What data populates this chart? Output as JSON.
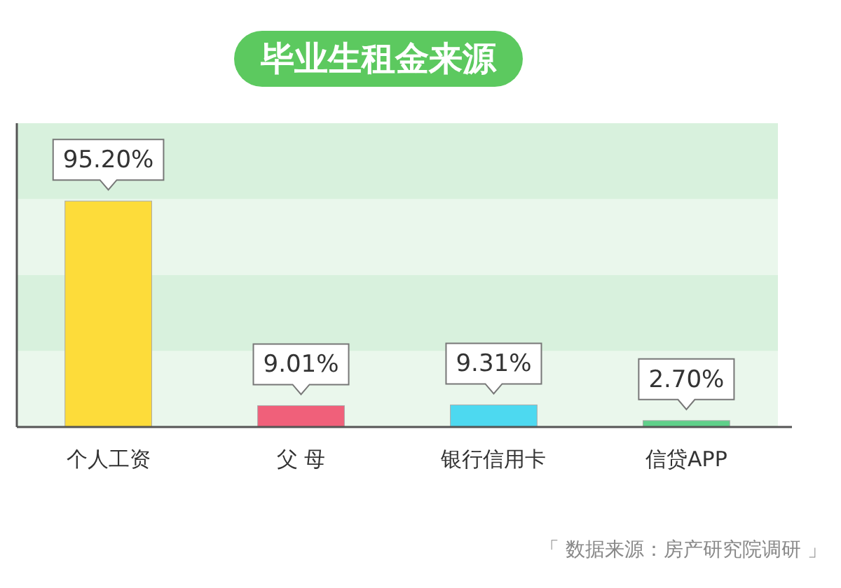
{
  "chart_data": {
    "type": "bar",
    "title": "毕业生租金来源",
    "categories": [
      "个人工资",
      "父 母",
      "银行信用卡",
      "信贷APP"
    ],
    "values": [
      95.2,
      9.01,
      9.31,
      2.7
    ],
    "value_labels": [
      "95.20%",
      "9.01%",
      "9.31%",
      "2.70%"
    ],
    "colors": [
      "#fddc3a",
      "#f0607a",
      "#4dd9f0",
      "#5fd08a"
    ],
    "ylim": [
      0,
      128
    ],
    "bands": [
      {
        "axis": "y",
        "from": 0,
        "to": 32,
        "color": "#eaf7ec"
      },
      {
        "axis": "y",
        "from": 32,
        "to": 64,
        "color": "#d8f1dd"
      },
      {
        "axis": "y",
        "from": 64,
        "to": 96,
        "color": "#eaf7ec"
      },
      {
        "axis": "y",
        "from": 96,
        "to": 128,
        "color": "#d8f1dd"
      }
    ],
    "annotations": [
      "「 数据来源：房产研究院调研 」"
    ]
  }
}
